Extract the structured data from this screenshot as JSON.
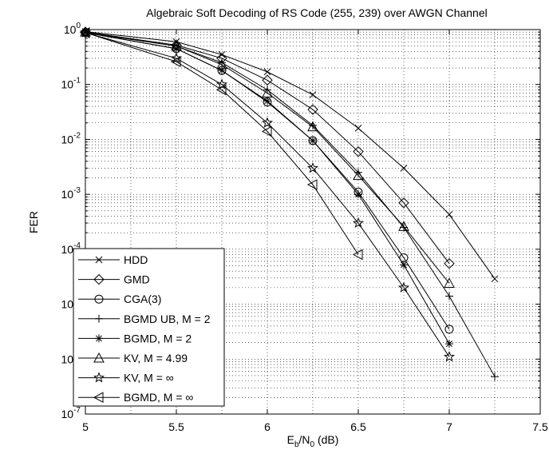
{
  "chart_data": {
    "type": "line",
    "title": "Algebraic Soft Decoding of RS Code (255, 239) over AWGN Channel",
    "xlabel": {
      "base": "E",
      "sub1": "b",
      "mid": "/N",
      "sub2": "0",
      "tail": " (dB)"
    },
    "ylabel": "FER",
    "xlim": [
      5,
      7.5
    ],
    "ylim": [
      1e-07,
      1
    ],
    "yscale": "log",
    "grid": true,
    "legend_position": "bottom-left",
    "x_ticks": [
      "5",
      "5.5",
      "6",
      "6.5",
      "7",
      "7.5"
    ],
    "y_ticks": [
      {
        "base": "10",
        "exp": "0"
      },
      {
        "base": "10",
        "exp": "-1"
      },
      {
        "base": "10",
        "exp": "-2"
      },
      {
        "base": "10",
        "exp": "-3"
      },
      {
        "base": "10",
        "exp": "-4"
      },
      {
        "base": "10",
        "exp": "-5"
      },
      {
        "base": "10",
        "exp": "-6"
      },
      {
        "base": "10",
        "exp": "-7"
      }
    ],
    "series": [
      {
        "name": "HDD",
        "marker": "x",
        "x": [
          5,
          5.5,
          5.75,
          6,
          6.25,
          6.5,
          6.75,
          7,
          7.25
        ],
        "y": [
          0.92,
          0.6,
          0.35,
          0.17,
          0.065,
          0.016,
          0.003,
          0.00043,
          2.9e-05
        ]
      },
      {
        "name": "GMD",
        "marker": "diamond",
        "x": [
          5,
          5.5,
          5.75,
          6,
          6.25,
          6.5,
          6.75,
          7
        ],
        "y": [
          0.9,
          0.52,
          0.3,
          0.12,
          0.035,
          0.006,
          0.0007,
          5.5e-05
        ]
      },
      {
        "name": "CGA(3)",
        "marker": "circle",
        "x": [
          5,
          5.5,
          5.75,
          6,
          6.25,
          6.5,
          6.75,
          7
        ],
        "y": [
          0.88,
          0.45,
          0.18,
          0.048,
          0.0095,
          0.0011,
          7e-05,
          3.5e-06
        ]
      },
      {
        "name": "BGMD UB, M = 2",
        "marker": "plus",
        "x": [
          5,
          5.5,
          5.75,
          6,
          6.25,
          6.5,
          6.75,
          7,
          7.25
        ],
        "y": [
          0.88,
          0.5,
          0.25,
          0.08,
          0.018,
          0.0025,
          0.00025,
          1.4e-05,
          4.8e-07
        ]
      },
      {
        "name": "BGMD, M = 2",
        "marker": "asterisk",
        "x": [
          5,
          5.5,
          5.75,
          6,
          6.25,
          6.5,
          6.75,
          7
        ],
        "y": [
          0.88,
          0.45,
          0.18,
          0.05,
          0.0095,
          0.001,
          5.2e-05,
          1.9e-06
        ]
      },
      {
        "name": "KV, M = 4.99",
        "marker": "triangle-up",
        "x": [
          5,
          5.5,
          5.75,
          6,
          6.25,
          6.5,
          6.75,
          7
        ],
        "y": [
          0.9,
          0.5,
          0.23,
          0.07,
          0.017,
          0.0022,
          0.00026,
          2.4e-05
        ]
      },
      {
        "name": "KV, M = ∞",
        "marker": "star",
        "x": [
          5,
          5.5,
          5.75,
          6,
          6.25,
          6.5,
          6.75,
          7
        ],
        "y": [
          0.88,
          0.3,
          0.1,
          0.02,
          0.003,
          0.0003,
          2e-05,
          1.1e-06
        ]
      },
      {
        "name": "BGMD, M = ∞",
        "marker": "triangle-left",
        "x": [
          5,
          5.5,
          5.75,
          6,
          6.25,
          6.5
        ],
        "y": [
          0.88,
          0.26,
          0.08,
          0.014,
          0.0015,
          8e-05
        ]
      }
    ]
  }
}
